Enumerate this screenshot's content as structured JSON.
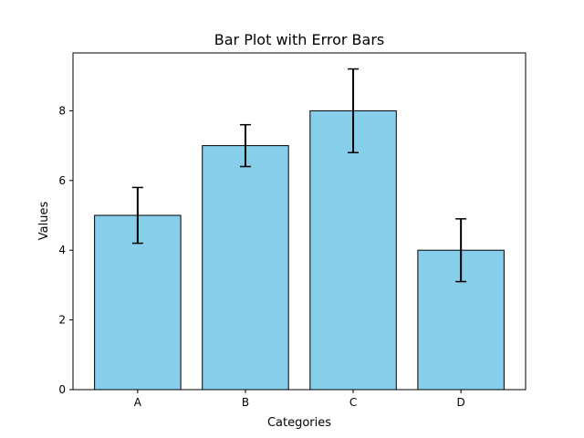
{
  "chart_data": {
    "type": "bar",
    "title": "Bar Plot with Error Bars",
    "xlabel": "Categories",
    "ylabel": "Values",
    "categories": [
      "A",
      "B",
      "C",
      "D"
    ],
    "values": [
      5,
      7,
      8,
      4
    ],
    "errors": [
      0.8,
      0.6,
      1.2,
      0.9
    ],
    "ylim": [
      0,
      9.66
    ],
    "yticks": [
      0,
      2,
      4,
      6,
      8
    ],
    "ytick_labels": [
      "0",
      "2",
      "4",
      "6",
      "8"
    ],
    "grid": false,
    "bar_color": "#87CEEB",
    "edge_color": "#000000",
    "error_color": "#000000"
  }
}
